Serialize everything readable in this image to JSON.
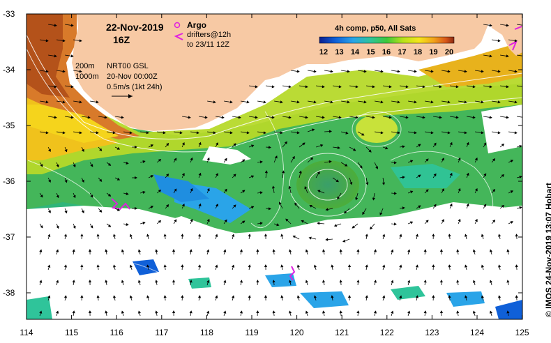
{
  "header": {
    "date": "22-Nov-2019",
    "time": "16Z",
    "argo_label": "Argo",
    "drifters_label": "drifters@12h",
    "drifters_range": "to 23/11 12Z"
  },
  "isobaths": {
    "shallow": "200m",
    "deep": "1000m"
  },
  "currents": {
    "source": "NRT00 GSL",
    "date": "20-Nov 00:00Z",
    "scale": "0.5m/s (1kt 24h)"
  },
  "colorbar": {
    "title": "4h comp, p50, All Sats",
    "ticks": [
      "12",
      "13",
      "14",
      "15",
      "16",
      "17",
      "18",
      "19",
      "20"
    ],
    "colors": [
      "#0a1f8f",
      "#1060d8",
      "#2aa4e8",
      "#2fc49a",
      "#3ec83a",
      "#b8e21a",
      "#f5e51c",
      "#f2a21a",
      "#d8561a",
      "#8a2a12"
    ]
  },
  "axes": {
    "x_ticks": [
      "114",
      "115",
      "116",
      "117",
      "118",
      "119",
      "120",
      "121",
      "122",
      "123",
      "124",
      "125"
    ],
    "y_ticks": [
      "-33",
      "-34",
      "-35",
      "-36",
      "-37",
      "-38"
    ]
  },
  "credit": "© IMOS 24-Nov-2019 13:07 Hobart",
  "colors": {
    "land": "#f7c9a4",
    "argo": "#e020e0",
    "arrow": "#000000"
  }
}
